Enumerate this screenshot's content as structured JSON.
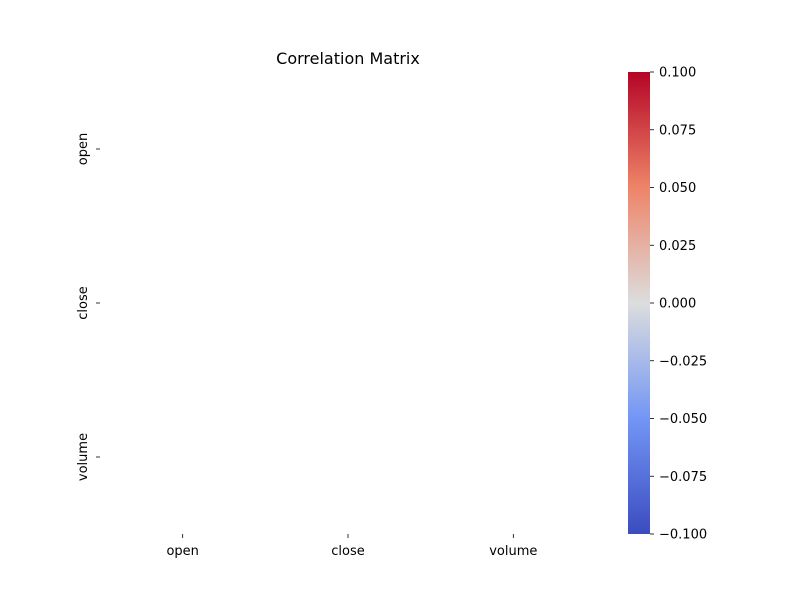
{
  "chart_data": {
    "type": "heatmap",
    "title": "Correlation Matrix",
    "xlabel": "",
    "ylabel": "",
    "x_categories": [
      "open",
      "close",
      "volume"
    ],
    "y_categories": [
      "open",
      "close",
      "volume"
    ],
    "values": [
      [
        null,
        null,
        null
      ],
      [
        null,
        null,
        null
      ],
      [
        null,
        null,
        null
      ]
    ],
    "colorbar": {
      "colormap": "coolwarm",
      "range": [
        -0.1,
        0.1
      ],
      "ticks": [
        "0.100",
        "0.075",
        "0.050",
        "0.025",
        "0.000",
        "−0.025",
        "−0.050",
        "−0.075",
        "−0.100"
      ],
      "tick_values": [
        0.1,
        0.075,
        0.05,
        0.025,
        0.0,
        -0.025,
        -0.05,
        -0.075,
        -0.1
      ],
      "colors": [
        "#b40426",
        "#ee8468",
        "#dcdddd",
        "#7396f5",
        "#3b4cc0"
      ]
    },
    "grid": false,
    "legend": "colorbar-right"
  }
}
